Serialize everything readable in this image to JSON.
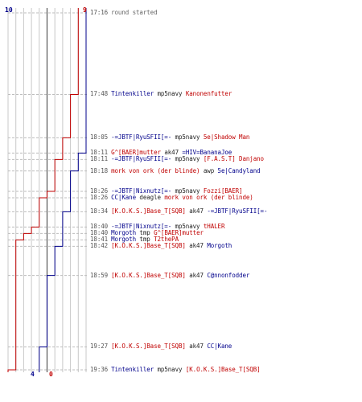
{
  "colors": {
    "blue": "#00008b",
    "red": "#c00000",
    "grid": "#c8c8c8",
    "dash": "#bdbdbd",
    "midline": "#555555"
  },
  "scores": {
    "blue_start": "10",
    "red_start": "9",
    "blue_end": "4",
    "red_end": "0"
  },
  "events": [
    {
      "time": "17:16",
      "kind": "info",
      "text": "round started"
    },
    {
      "time": "17:48",
      "kind": "kill",
      "killer": "Tintenkiller",
      "killer_team": "blue",
      "weapon": "mp5navy",
      "victim": "Kanonenfutter",
      "victim_team": "red"
    },
    {
      "time": "18:05",
      "kind": "kill",
      "killer": "-=JBTF|RyuSFII[=-",
      "killer_team": "blue",
      "weapon": "mp5navy",
      "victim": "5e|Shadow Man",
      "victim_team": "red"
    },
    {
      "time": "18:11",
      "kind": "kill",
      "killer": "G^[BAER]mutter",
      "killer_team": "red",
      "weapon": "ak47",
      "victim": "=HIV=BananaJoe",
      "victim_team": "blue"
    },
    {
      "time": "18:11",
      "kind": "kill",
      "killer": "-=JBTF|RyuSFII[=-",
      "killer_team": "blue",
      "weapon": "mp5navy",
      "victim": "[F.A.S.T] Danjano",
      "victim_team": "red"
    },
    {
      "time": "18:18",
      "kind": "kill",
      "killer": "mork von ork (der blinde)",
      "killer_team": "red",
      "weapon": "awp",
      "victim": "5e|Candyland",
      "victim_team": "blue"
    },
    {
      "time": "18:26",
      "kind": "kill",
      "killer": "-=JBTF|Nixnutz[=-",
      "killer_team": "blue",
      "weapon": "mp5navy",
      "victim": "Fozzi[BAER]",
      "victim_team": "red"
    },
    {
      "time": "18:26",
      "kind": "kill",
      "killer": "CC|Kane",
      "killer_team": "blue",
      "weapon": "deagle",
      "victim": "mork von ork (der blinde)",
      "victim_team": "red"
    },
    {
      "time": "18:34",
      "kind": "kill",
      "killer": "[K.O.K.S.]Base_T[SQB]",
      "killer_team": "red",
      "weapon": "ak47",
      "victim": "-=JBTF|RyuSFII[=-",
      "victim_team": "blue"
    },
    {
      "time": "18:40",
      "kind": "kill",
      "killer": "-=JBTF|Nixnutz[=-",
      "killer_team": "blue",
      "weapon": "mp5navy",
      "victim": "tHALER",
      "victim_team": "red"
    },
    {
      "time": "18:40",
      "kind": "kill",
      "killer": "Morgoth",
      "killer_team": "blue",
      "weapon": "tmp",
      "victim": "G^[BAER]mutter",
      "victim_team": "red"
    },
    {
      "time": "18:41",
      "kind": "kill",
      "killer": "Morgoth",
      "killer_team": "blue",
      "weapon": "tmp",
      "victim": "T2thePA",
      "victim_team": "red"
    },
    {
      "time": "18:42",
      "kind": "kill",
      "killer": "[K.O.K.S.]Base_T[SQB]",
      "killer_team": "red",
      "weapon": "ak47",
      "victim": "Morgoth",
      "victim_team": "blue"
    },
    {
      "time": "18:59",
      "kind": "kill",
      "killer": "[K.O.K.S.]Base_T[SQB]",
      "killer_team": "red",
      "weapon": "ak47",
      "victim": "C@nnonfodder",
      "victim_team": "blue"
    },
    {
      "time": "19:27",
      "kind": "kill",
      "killer": "[K.O.K.S.]Base_T[SQB]",
      "killer_team": "red",
      "weapon": "ak47",
      "victim": "CC|Kane",
      "victim_team": "blue"
    },
    {
      "time": "19:36",
      "kind": "kill",
      "killer": "Tintenkiller",
      "killer_team": "blue",
      "weapon": "mp5navy",
      "victim": "[K.O.K.S.]Base_T[SQB]",
      "victim_team": "red"
    }
  ]
}
